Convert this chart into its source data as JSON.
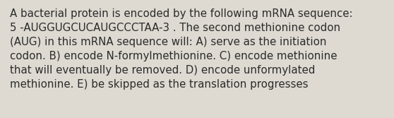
{
  "text": "A bacterial protein is encoded by the following mRNA sequence:\n5 -AUGGUGCUCAUGCCCTAA-3 . The second methionine codon\n(AUG) in this mRNA sequence will: A) serve as the initiation\ncodon. B) encode N-formylmethionine. C) encode methionine\nthat will eventually be removed. D) encode unformylated\nmethionine. E) be skipped as the translation progresses",
  "background_color": "#dedad2",
  "text_color": "#2b2b2b",
  "font_size": 10.8,
  "font_family": "DejaVu Sans"
}
